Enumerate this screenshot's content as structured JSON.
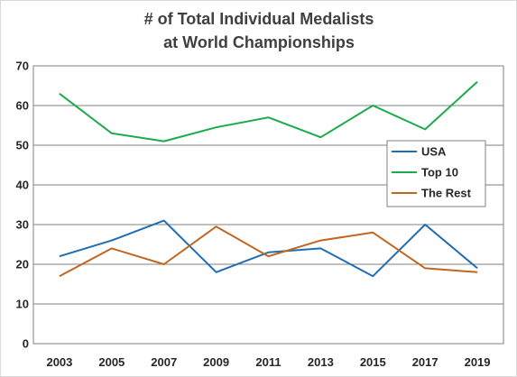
{
  "chart_data": {
    "type": "line",
    "title_lines": [
      "# of Total Individual Medalists",
      "at World Championships"
    ],
    "xlabel": "",
    "ylabel": "",
    "categories": [
      "2003",
      "2005",
      "2007",
      "2009",
      "2011",
      "2013",
      "2015",
      "2017",
      "2019"
    ],
    "ylim": [
      0,
      70
    ],
    "yticks": [
      0,
      10,
      20,
      30,
      40,
      50,
      60,
      70
    ],
    "grid": true,
    "legend_position": "right",
    "series": [
      {
        "name": "USA",
        "color": "#1f6db5",
        "values": [
          22,
          26,
          31,
          18,
          23,
          24,
          17,
          30,
          19
        ]
      },
      {
        "name": "Top 10",
        "color": "#1aab4b",
        "values": [
          63,
          53,
          51,
          54.5,
          57,
          52,
          60,
          54,
          66
        ]
      },
      {
        "name": "The Rest",
        "color": "#c0661e",
        "values": [
          17,
          24,
          20,
          29.5,
          22,
          26,
          28,
          19,
          18
        ]
      }
    ]
  }
}
